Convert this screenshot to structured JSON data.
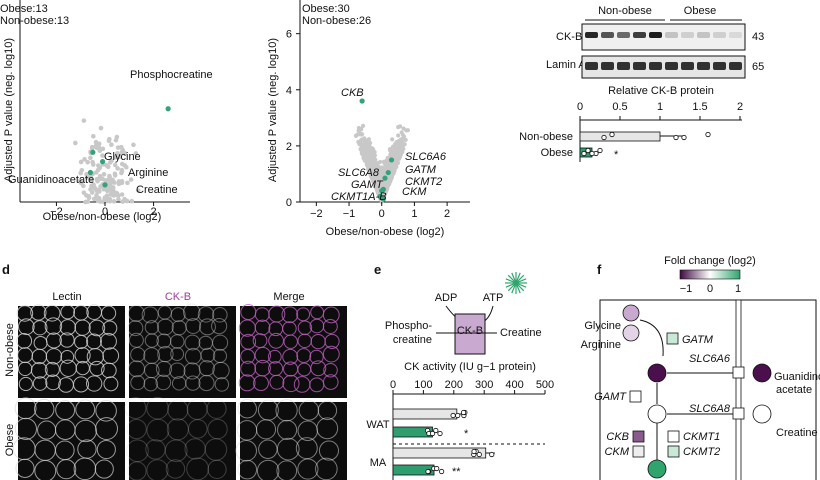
{
  "panel_a": {
    "legend": [
      "Obese:13",
      "Non-obese:13"
    ],
    "xlabel": "Obese/non-obese (log2)",
    "ylabel": "Adjusted P value (neg. log10)",
    "annotations": [
      "Phosphocreatine",
      "Glycine",
      "Arginine",
      "Guanidinoacetate",
      "Creatine"
    ]
  },
  "panel_b": {
    "legend": [
      "Obese:30",
      "Non-obese:26"
    ],
    "xlabel": "Obese/non-obese (log2)",
    "ylabel": "Adjusted P value (neg. log10)",
    "annotations": [
      "CKB",
      "SLC6A6",
      "GATM",
      "SLC6A8",
      "CKMT2",
      "GAMT",
      "CKMT1A-B",
      "CKM"
    ]
  },
  "panel_c": {
    "group_labels": [
      "Non-obese",
      "Obese"
    ],
    "bands": [
      {
        "label": "CK-B",
        "kda": "43"
      },
      {
        "label": "Lamin A/C",
        "kda": "65"
      }
    ],
    "xlabel": "Relative CK-B protein",
    "sig": "*"
  },
  "panel_d": {
    "label": "d",
    "columns": [
      "Lectin",
      "CK-B",
      "Merge"
    ],
    "rows": [
      "Non-obese",
      "Obese"
    ]
  },
  "panel_e": {
    "label": "e",
    "schematic": {
      "adp": "ADP",
      "atp": "ATP",
      "enzyme": "CK-B",
      "left1": "Phospho-",
      "left2": "creatine",
      "right": "Creatine"
    },
    "xlabel": "CK activity (IU g−1 protein)",
    "sig": [
      "*",
      "**"
    ]
  },
  "panel_f": {
    "label": "f",
    "legend_title": "Fold change (log2)",
    "legend_ticks": [
      "−1",
      "0",
      "1"
    ],
    "nodes": {
      "glycine": "Glycine",
      "arginine": "Arginine",
      "gatm": "GATM",
      "slc6a6": "SLC6A6",
      "gaa1": "Guanidino-",
      "gaa2": "acetate",
      "gamt": "GAMT",
      "slc6a8": "SLC6A8",
      "creatine": "Creatine",
      "ckb": "CKB",
      "ckm": "CKM",
      "ckmt1": "CKMT1",
      "ckmt2": "CKMT2"
    }
  },
  "colors": {
    "hit": "#35a27a",
    "gray": "#c8c8c8",
    "purple": "#5a1a5a",
    "lilac": "#c9a9cf",
    "bar_gray": "#e6e6e6",
    "bar_green": "#2e9e6f"
  },
  "chart_data": [
    {
      "type": "scatter",
      "name_ref": "panel_a",
      "xlabel": "Obese/non-obese (log2)",
      "ylabel": "Adjusted P value (neg. log10)",
      "xlim": [
        -3.5,
        3.5
      ],
      "ylim": [
        0,
        6.5
      ],
      "xticks": [
        -2,
        0,
        2
      ],
      "highlight": [
        {
          "label": "Phosphocreatine",
          "x": 2.6,
          "y": 3.0
        },
        {
          "label": "Glycine",
          "x": -0.5,
          "y": 1.6
        },
        {
          "label": "Arginine",
          "x": -0.1,
          "y": 1.3
        },
        {
          "label": "Guanidinoacetate",
          "x": -0.6,
          "y": 0.95
        },
        {
          "label": "Creatine",
          "x": 0.0,
          "y": 0.55
        }
      ]
    },
    {
      "type": "scatter",
      "name_ref": "panel_b",
      "xlabel": "Obese/non-obese (log2)",
      "ylabel": "Adjusted P value (neg. log10)",
      "xlim": [
        -2.5,
        2.7
      ],
      "ylim": [
        0,
        7.2
      ],
      "xticks": [
        -2,
        -1,
        0,
        1,
        2
      ],
      "yticks": [
        0,
        2,
        4,
        6
      ],
      "highlight": [
        {
          "label": "CKB",
          "x": -0.6,
          "y": 3.6
        },
        {
          "label": "SLC6A6",
          "x": 0.3,
          "y": 1.5
        },
        {
          "label": "GATM",
          "x": 0.2,
          "y": 1.05
        },
        {
          "label": "SLC6A8",
          "x": 0.1,
          "y": 0.85
        },
        {
          "label": "CKMT2",
          "x": 0.05,
          "y": 0.45
        },
        {
          "label": "GAMT",
          "x": 0.0,
          "y": 0.4
        },
        {
          "label": "CKMT1A-B",
          "x": -0.05,
          "y": 0.2
        },
        {
          "label": "CKM",
          "x": 0.05,
          "y": 0.1
        }
      ]
    },
    {
      "type": "bar",
      "name_ref": "panel_c",
      "xlabel": "Relative CK-B protein",
      "xlim": [
        0,
        2.0
      ],
      "xticks": [
        0,
        0.5,
        1.0,
        1.5,
        2.0
      ],
      "categories": [
        "Non-obese",
        "Obese"
      ],
      "values": [
        1.0,
        0.15
      ],
      "errors": [
        0.3,
        0.05
      ],
      "points": [
        [
          0.3,
          0.4,
          1.3,
          1.6,
          1.2
        ],
        [
          0.05,
          0.1,
          0.2,
          0.25,
          0.15
        ]
      ]
    },
    {
      "type": "bar",
      "name_ref": "panel_e",
      "xlabel": "CK activity (IU g−1 protein)",
      "xlim": [
        0,
        500
      ],
      "xticks": [
        0,
        100,
        200,
        300,
        400,
        500
      ],
      "categories": [
        "WAT",
        "MA"
      ],
      "series": [
        {
          "values": [
            210,
            305
          ],
          "errors": [
            30,
            30
          ]
        },
        {
          "values": [
            130,
            135
          ],
          "errors": [
            15,
            15
          ]
        }
      ]
    }
  ]
}
